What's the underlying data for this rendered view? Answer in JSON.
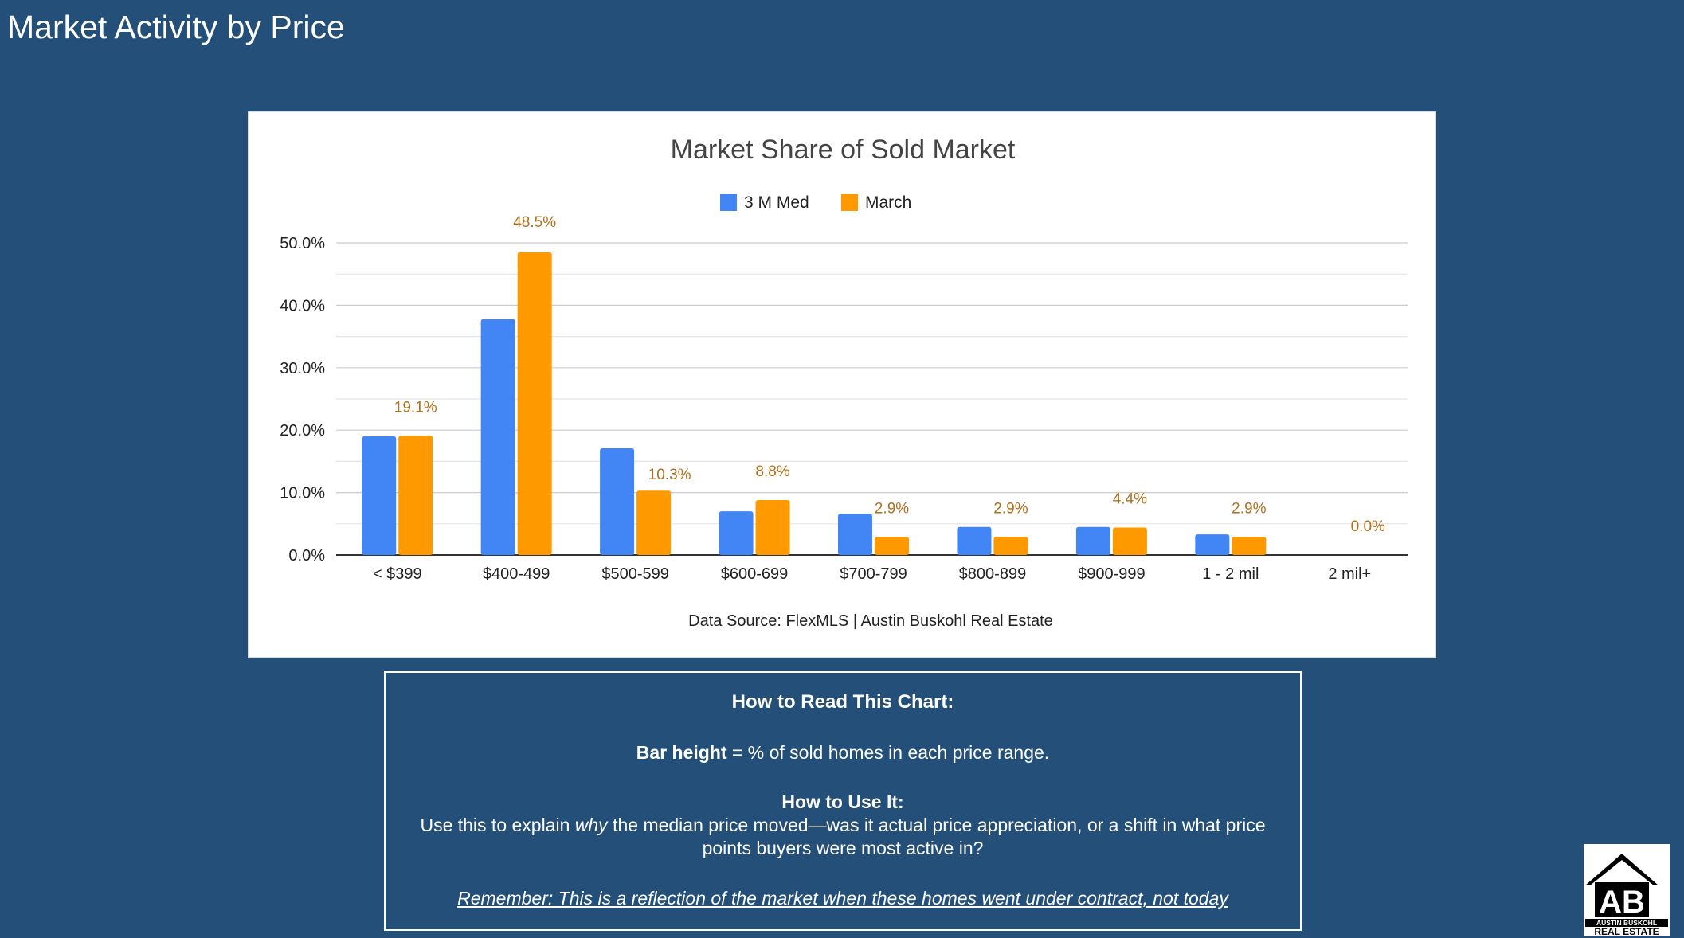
{
  "page": {
    "title": "Market Activity by Price"
  },
  "chart_data": {
    "type": "bar",
    "title": "Market Share of Sold Market",
    "categories": [
      "< $399",
      "$400-499",
      "$500-599",
      "$600-699",
      "$700-799",
      "$800-899",
      "$900-999",
      "1 - 2 mil",
      "2 mil+"
    ],
    "series": [
      {
        "name": "3 M Med",
        "color": "#4285f4",
        "values": [
          19.0,
          37.8,
          17.1,
          7.0,
          6.6,
          4.5,
          4.5,
          3.3,
          0.0
        ]
      },
      {
        "name": "March",
        "color": "#ff9900",
        "values": [
          19.1,
          48.5,
          10.3,
          8.8,
          2.9,
          2.9,
          4.4,
          2.9,
          0.0
        ]
      }
    ],
    "data_labels": [
      "19.1%",
      "48.5%",
      "10.3%",
      "8.8%",
      "2.9%",
      "2.9%",
      "4.4%",
      "2.9%",
      "0.0%"
    ],
    "y_ticks": [
      "0.0%",
      "10.0%",
      "20.0%",
      "30.0%",
      "40.0%",
      "50.0%"
    ],
    "ylim": [
      0,
      50
    ],
    "grid": true,
    "legend_position": "top",
    "source": "Data Source: FlexMLS | Austin Buskohl Real Estate",
    "label_color": "#b06f1c"
  },
  "explain": {
    "heading": "How to Read This Chart:",
    "bar_bold": "Bar height",
    "bar_rest": " = % of sold homes in each price range.",
    "use_heading": "How to Use It:",
    "use_pre": "Use this to explain ",
    "use_italic": "why",
    "use_post": " the median price moved—was it actual price appreciation, or a shift in what price points buyers were most active in?",
    "remember": "Remember: This is a reflection of the market when these homes went under contract, not today"
  },
  "logo": {
    "line1": "AUSTIN BUSKOHL",
    "line2": "REAL ESTATE",
    "monogram": "AB"
  }
}
